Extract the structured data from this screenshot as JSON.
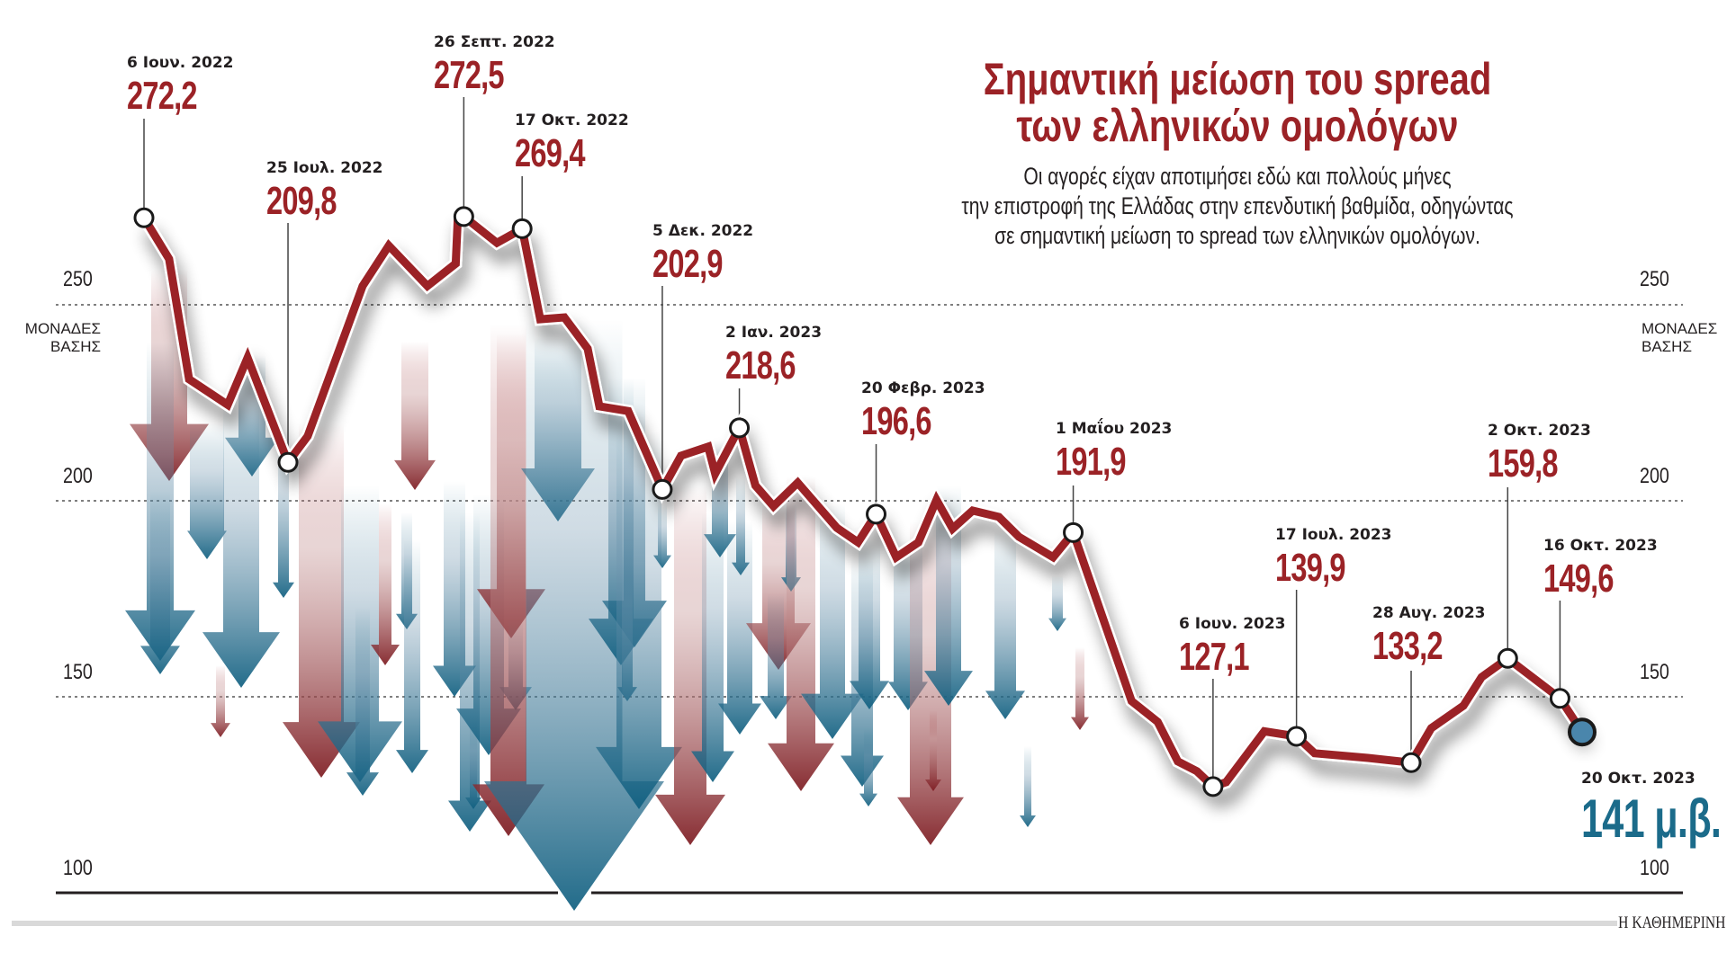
{
  "chart_data": {
    "type": "line",
    "title": "Σημαντική μείωση του spread των ελληνικών ομολόγων",
    "title_lines": [
      "Σημαντική μείωση του spread",
      "των ελληνικών ομολόγων"
    ],
    "subtitle_lines": [
      "Οι αγορές είχαν αποτιμήσει εδώ και πολλούς μήνες",
      "την επιστροφή της Ελλάδας στην επενδυτική βαθμίδα, οδηγώντας",
      "σε σημαντική μείωση το spread των ελληνικών ομολόγων."
    ],
    "ylabel_lines": [
      "ΜΟΝΑΔΕΣ",
      "ΒΑΣΗΣ"
    ],
    "ylim": [
      100,
      280
    ],
    "yticks": [
      "100",
      "150",
      "200",
      "250"
    ],
    "ytick_values": [
      100,
      150,
      200,
      250
    ],
    "grid": true,
    "xlabel": "",
    "x_unit": "weeks since 6 Jun 2022",
    "xlim": [
      0,
      71.5
    ],
    "series": [
      {
        "name": "spread",
        "color": "#9b2226",
        "points": [
          [
            0,
            272.2
          ],
          [
            1.25,
            261.7
          ],
          [
            2.24,
            231.0
          ],
          [
            4.16,
            224.5
          ],
          [
            5.15,
            236.5
          ],
          [
            7.16,
            209.8
          ],
          [
            8.14,
            216.5
          ],
          [
            10.87,
            254.8
          ],
          [
            12.17,
            265.1
          ],
          [
            14.09,
            254.8
          ],
          [
            15.5,
            260.5
          ],
          [
            15.6,
            272.2
          ],
          [
            15.9,
            272.5
          ],
          [
            17.55,
            265.8
          ],
          [
            18.8,
            269.4
          ],
          [
            19.7,
            246.3
          ],
          [
            20.9,
            246.8
          ],
          [
            22.06,
            238.8
          ],
          [
            22.64,
            224.1
          ],
          [
            24.07,
            222.9
          ],
          [
            25.77,
            202.9
          ],
          [
            26.7,
            211.5
          ],
          [
            28.05,
            213.8
          ],
          [
            28.4,
            206.9
          ],
          [
            29.6,
            218.6
          ],
          [
            30.4,
            203.9
          ],
          [
            31.3,
            198.6
          ],
          [
            32.5,
            204.6
          ],
          [
            34.45,
            193.1
          ],
          [
            35.5,
            189.4
          ],
          [
            36.4,
            196.6
          ],
          [
            37.4,
            185.6
          ],
          [
            38.5,
            189.4
          ],
          [
            39.4,
            200.2
          ],
          [
            40.2,
            192.9
          ],
          [
            41.2,
            197.5
          ],
          [
            42.5,
            195.9
          ],
          [
            43.5,
            190.8
          ],
          [
            45.2,
            185.6
          ],
          [
            46.2,
            191.9
          ],
          [
            49.1,
            148.9
          ],
          [
            50.4,
            143.6
          ],
          [
            51.4,
            133.5
          ],
          [
            52.35,
            131.0
          ],
          [
            53.15,
            127.1
          ],
          [
            53.8,
            128.2
          ],
          [
            55.7,
            141.2
          ],
          [
            57.3,
            139.9
          ],
          [
            58.2,
            135.6
          ],
          [
            60.85,
            134.4
          ],
          [
            63.0,
            133.2
          ],
          [
            64.0,
            142.0
          ],
          [
            65.6,
            147.7
          ],
          [
            66.5,
            155.0
          ],
          [
            67.8,
            159.8
          ],
          [
            70.4,
            149.6
          ],
          [
            71.5,
            141.0
          ]
        ]
      }
    ],
    "annotations": [
      {
        "date": "6 Ιουν. 2022",
        "value": "272,2",
        "x": 0,
        "y": 272.2
      },
      {
        "date": "25 Ιουλ. 2022",
        "value": "209,8",
        "x": 7.16,
        "y": 209.8
      },
      {
        "date": "26 Σεπτ. 2022",
        "value": "272,5",
        "x": 15.9,
        "y": 272.5
      },
      {
        "date": "17 Οκτ. 2022",
        "value": "269,4",
        "x": 18.8,
        "y": 269.4
      },
      {
        "date": "5 Δεκ. 2022",
        "value": "202,9",
        "x": 25.77,
        "y": 202.9
      },
      {
        "date": "2 Ιαν. 2023",
        "value": "218,6",
        "x": 29.6,
        "y": 218.6
      },
      {
        "date": "20 Φεβρ. 2023",
        "value": "196,6",
        "x": 36.4,
        "y": 196.6
      },
      {
        "date": "1 Μαΐου 2023",
        "value": "191,9",
        "x": 46.2,
        "y": 191.9
      },
      {
        "date": "6 Ιουν. 2023",
        "value": "127,1",
        "x": 53.15,
        "y": 127.1
      },
      {
        "date": "17 Ιουλ. 2023",
        "value": "139,9",
        "x": 57.3,
        "y": 139.9
      },
      {
        "date": "28 Αυγ. 2023",
        "value": "133,2",
        "x": 63.0,
        "y": 133.2
      },
      {
        "date": "2 Οκτ. 2023",
        "value": "159,8",
        "x": 67.8,
        "y": 159.8
      },
      {
        "date": "16 Οκτ. 2023",
        "value": "149,6",
        "x": 70.4,
        "y": 149.6
      }
    ],
    "final": {
      "date": "20 Οκτ. 2023",
      "value": "141 μ.β.",
      "x": 71.5,
      "y": 141,
      "color": "#4a86ac",
      "text_color": "#1b6b8a"
    }
  },
  "colors": {
    "accent_red": "#9b2226",
    "accent_blue": "#1b6b8a",
    "text": "#231f20"
  },
  "source": "Η ΚΑΘΗΜΕΡΙΝΗ"
}
